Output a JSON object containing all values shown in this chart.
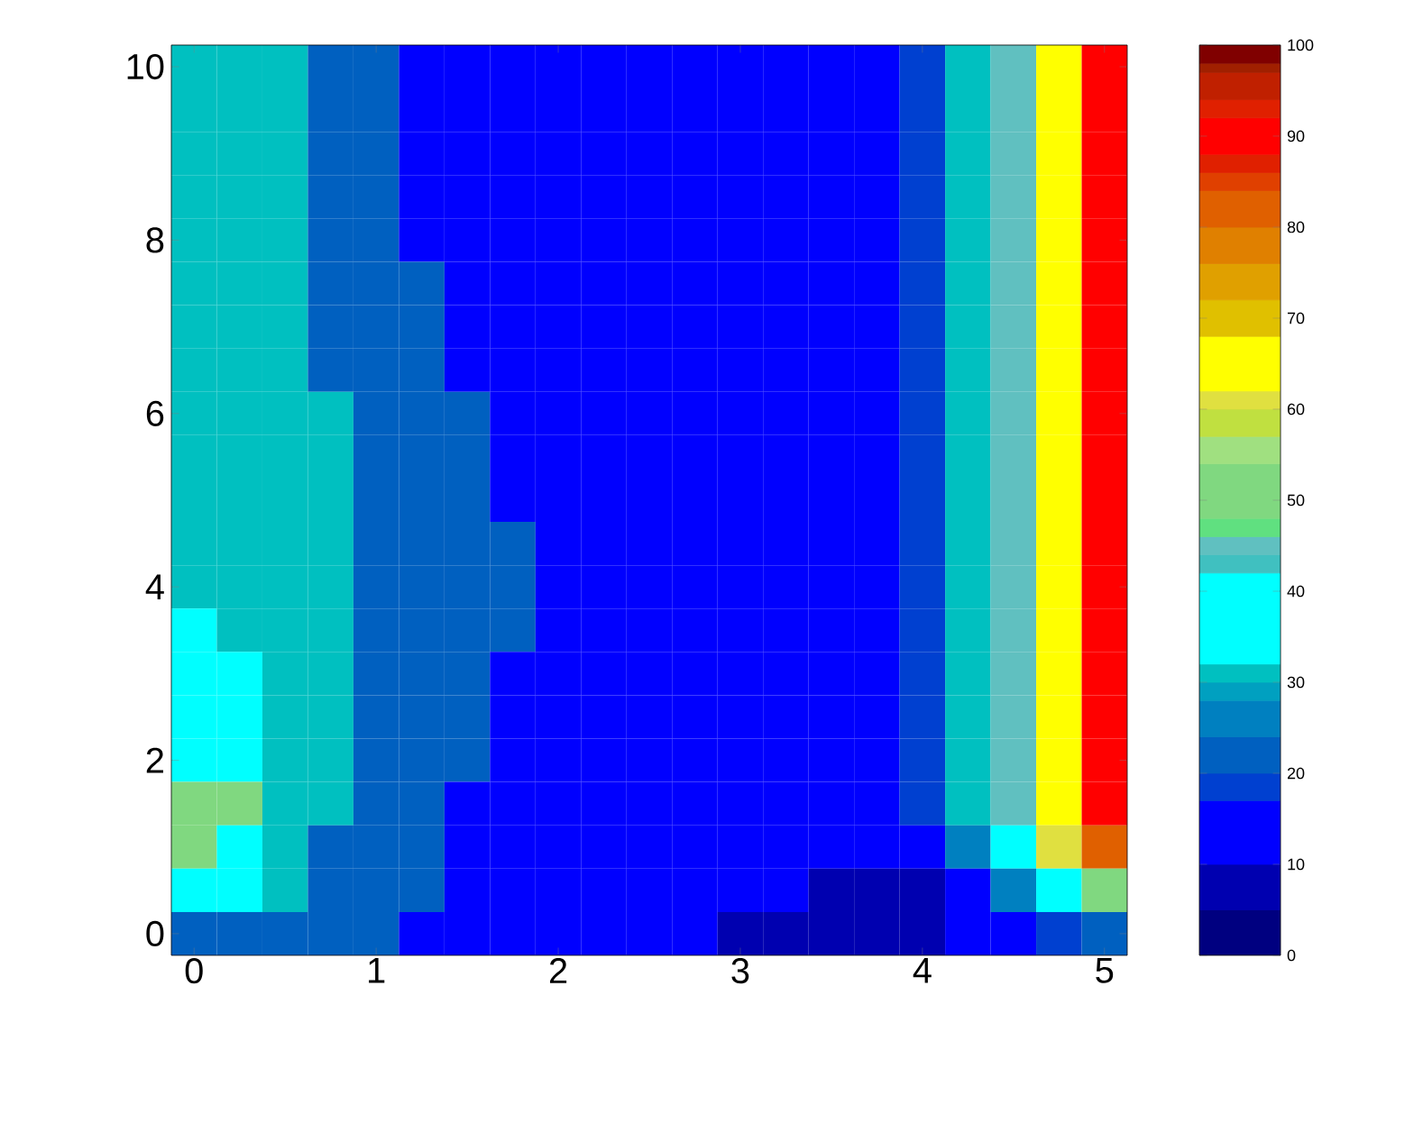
{
  "chart_data": {
    "type": "heatmap",
    "categories": [
      "0",
      null,
      null,
      null,
      "1",
      null,
      null,
      null,
      "2",
      null,
      null,
      null,
      "3",
      null,
      null,
      null,
      "4",
      null,
      null,
      null,
      "5"
    ],
    "y_categories": [
      "10",
      null,
      null,
      null,
      "8",
      null,
      null,
      null,
      "6",
      null,
      null,
      null,
      "4",
      null,
      null,
      null,
      "2",
      null,
      null,
      null,
      "0"
    ],
    "cells": [
      [
        31,
        31,
        31,
        21,
        21,
        12,
        12,
        12,
        12,
        12,
        12,
        12,
        12,
        12,
        12,
        12,
        18,
        30,
        45,
        65,
        90
      ],
      [
        31,
        31,
        31,
        21,
        21,
        12,
        12,
        12,
        12,
        12,
        12,
        12,
        12,
        12,
        12,
        12,
        18,
        30,
        45,
        65,
        90
      ],
      [
        31,
        31,
        31,
        21,
        21,
        12,
        12,
        12,
        12,
        12,
        12,
        12,
        12,
        12,
        12,
        12,
        18,
        30,
        45,
        65,
        90
      ],
      [
        31,
        31,
        31,
        21,
        21,
        12,
        12,
        12,
        12,
        12,
        12,
        12,
        12,
        12,
        12,
        12,
        18,
        30,
        45,
        65,
        90
      ],
      [
        31,
        31,
        31,
        21,
        21,
        12,
        12,
        12,
        12,
        12,
        12,
        12,
        12,
        12,
        12,
        12,
        18,
        30,
        45,
        65,
        90
      ],
      [
        31,
        31,
        31,
        21,
        21,
        21,
        12,
        12,
        12,
        12,
        12,
        12,
        12,
        12,
        12,
        12,
        18,
        30,
        45,
        65,
        90
      ],
      [
        31,
        31,
        31,
        21,
        21,
        21,
        12,
        12,
        12,
        12,
        12,
        12,
        12,
        12,
        12,
        12,
        18,
        30,
        45,
        65,
        90
      ],
      [
        31,
        31,
        31,
        21,
        21,
        21,
        12,
        12,
        12,
        12,
        12,
        12,
        12,
        12,
        12,
        12,
        18,
        30,
        45,
        65,
        90
      ],
      [
        31,
        31,
        31,
        31,
        21,
        21,
        21,
        12,
        12,
        12,
        12,
        12,
        12,
        12,
        12,
        12,
        18,
        30,
        45,
        65,
        90
      ],
      [
        31,
        31,
        31,
        31,
        21,
        21,
        21,
        12,
        12,
        12,
        12,
        12,
        12,
        12,
        12,
        12,
        18,
        30,
        45,
        65,
        90
      ],
      [
        31,
        31,
        31,
        31,
        21,
        21,
        21,
        12,
        12,
        12,
        12,
        12,
        12,
        12,
        12,
        12,
        18,
        30,
        45,
        65,
        90
      ],
      [
        31,
        31,
        31,
        31,
        21,
        21,
        21,
        21,
        12,
        12,
        12,
        12,
        12,
        12,
        12,
        12,
        18,
        30,
        45,
        65,
        90
      ],
      [
        31,
        31,
        31,
        31,
        21,
        21,
        21,
        21,
        12,
        12,
        12,
        12,
        12,
        12,
        12,
        12,
        18,
        30,
        45,
        65,
        90
      ],
      [
        36,
        31,
        31,
        31,
        21,
        21,
        21,
        21,
        12,
        12,
        12,
        12,
        12,
        12,
        12,
        12,
        18,
        30,
        45,
        65,
        90
      ],
      [
        36,
        36,
        31,
        31,
        21,
        21,
        21,
        12,
        12,
        12,
        12,
        12,
        12,
        12,
        12,
        12,
        18,
        30,
        45,
        65,
        90
      ],
      [
        36,
        36,
        31,
        31,
        21,
        21,
        21,
        12,
        12,
        12,
        12,
        12,
        12,
        12,
        12,
        12,
        18,
        30,
        45,
        65,
        90
      ],
      [
        36,
        36,
        31,
        31,
        21,
        21,
        21,
        12,
        12,
        12,
        12,
        12,
        12,
        12,
        12,
        12,
        18,
        30,
        45,
        65,
        90
      ],
      [
        50,
        50,
        31,
        31,
        21,
        21,
        12,
        12,
        12,
        12,
        12,
        12,
        12,
        12,
        12,
        12,
        18,
        30,
        45,
        65,
        90
      ],
      [
        50,
        36,
        31,
        21,
        21,
        21,
        12,
        12,
        12,
        12,
        12,
        12,
        12,
        12,
        12,
        12,
        15,
        24,
        40,
        60,
        80
      ],
      [
        36,
        36,
        31,
        21,
        21,
        21,
        12,
        12,
        12,
        12,
        12,
        12,
        12,
        12,
        7,
        7,
        9,
        15,
        26,
        40,
        52
      ],
      [
        21,
        21,
        21,
        21,
        21,
        12,
        12,
        12,
        12,
        12,
        12,
        12,
        7,
        7,
        7,
        7,
        7,
        10,
        12,
        17,
        20
      ]
    ],
    "clim": [
      0,
      100
    ],
    "cticks": [
      0,
      10,
      20,
      30,
      40,
      50,
      60,
      70,
      80,
      90,
      100
    ]
  }
}
